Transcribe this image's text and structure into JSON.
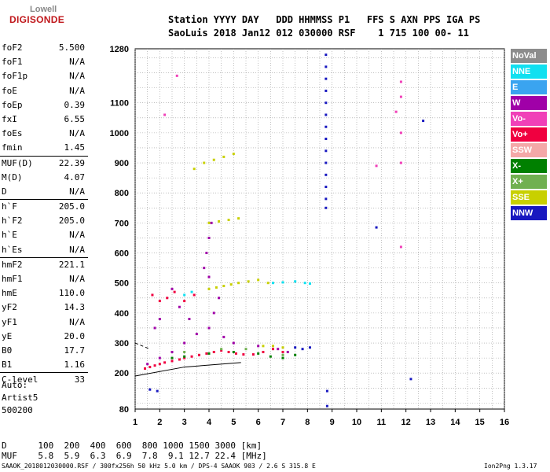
{
  "logo": {
    "line1": "Lowell",
    "line2": "DIGISONDE"
  },
  "header": {
    "line1": "Station YYYY DAY   DDD HHMMSS P1   FFS S AXN PPS IGA PS",
    "line2": "SaoLuis 2018 Jan12 012 030000 RSF    1 715 100 00- 11"
  },
  "params": [
    {
      "label": "foF2",
      "value": "5.500"
    },
    {
      "label": "foF1",
      "value": "N/A"
    },
    {
      "label": "foF1p",
      "value": "N/A"
    },
    {
      "label": "foE",
      "value": "N/A"
    },
    {
      "label": "foEp",
      "value": "0.39"
    },
    {
      "label": "fxI",
      "value": "6.55"
    },
    {
      "label": "foEs",
      "value": "N/A"
    },
    {
      "label": "fmin",
      "value": "1.45"
    },
    {
      "label": "MUF(D)",
      "value": "22.39",
      "sep": true
    },
    {
      "label": "M(D)",
      "value": "4.07"
    },
    {
      "label": "D",
      "value": "N/A"
    },
    {
      "label": "h`F",
      "value": "205.0",
      "sep": true
    },
    {
      "label": "h`F2",
      "value": "205.0"
    },
    {
      "label": "h`E",
      "value": "N/A"
    },
    {
      "label": "h`Es",
      "value": "N/A"
    },
    {
      "label": "hmF2",
      "value": "221.1",
      "sep": true
    },
    {
      "label": "hmF1",
      "value": "N/A"
    },
    {
      "label": "hmE",
      "value": "110.0"
    },
    {
      "label": "yF2",
      "value": "14.3"
    },
    {
      "label": "yF1",
      "value": "N/A"
    },
    {
      "label": "yE",
      "value": "20.0"
    },
    {
      "label": "B0",
      "value": "17.7"
    },
    {
      "label": "B1",
      "value": "1.16"
    },
    {
      "label": "C-level",
      "value": "33",
      "sep": true
    }
  ],
  "auto": {
    "l1": "Auto:",
    "l2": "Artist5",
    "l3": "500200"
  },
  "muf_table": {
    "d_line": "D      100  200  400  600  800 1000 1500 3000 [km]",
    "muf_line": "MUF    5.8  5.9  6.3  6.9  7.8  9.1 12.7 22.4 [MHz]"
  },
  "footer": "SAAOK_2018012030000.RSF / 300fx256h 50 kHz 5.0 km / DPS-4 SAAOK 903 / 2.6 S 315.8 E",
  "version": "Ion2Png 1.3.17",
  "legend": [
    {
      "label": "NoVal",
      "color": "#8c8c8c"
    },
    {
      "label": "NNE",
      "color": "#10e0f0"
    },
    {
      "label": "E",
      "color": "#3aa4f0"
    },
    {
      "label": "W",
      "color": "#a000a8"
    },
    {
      "label": "Vo-",
      "color": "#f040b8"
    },
    {
      "label": "Vo+",
      "color": "#f00040"
    },
    {
      "label": "SSW",
      "color": "#f4a8a8"
    },
    {
      "label": "X-",
      "color": "#008000"
    },
    {
      "label": "X+",
      "color": "#70b050"
    },
    {
      "label": "SSE",
      "color": "#c8d000"
    },
    {
      "label": "NNW",
      "color": "#1818c0"
    }
  ],
  "chart_data": {
    "type": "scatter",
    "title": "",
    "xlabel": "",
    "ylabel": "",
    "xlim": [
      1,
      16
    ],
    "ylim": [
      80,
      1280
    ],
    "x_ticks": [
      1,
      2,
      3,
      4,
      5,
      6,
      7,
      8,
      9,
      10,
      11,
      12,
      13,
      14,
      15,
      16
    ],
    "y_ticks": [
      80,
      200,
      300,
      400,
      500,
      600,
      700,
      800,
      900,
      1000,
      1100,
      1280
    ],
    "grid": true,
    "scale": "ionogram virtual height (km) vs frequency (MHz)",
    "series": [
      {
        "color": "#f00040",
        "points": [
          [
            1.4,
            215
          ],
          [
            1.6,
            220
          ],
          [
            1.8,
            225
          ],
          [
            2.0,
            230
          ],
          [
            2.2,
            235
          ],
          [
            2.5,
            240
          ],
          [
            2.8,
            245
          ],
          [
            3.0,
            250
          ],
          [
            3.3,
            255
          ],
          [
            3.6,
            260
          ],
          [
            3.9,
            265
          ],
          [
            4.2,
            270
          ],
          [
            4.5,
            275
          ],
          [
            4.8,
            270
          ],
          [
            5.1,
            265
          ],
          [
            5.4,
            262
          ],
          [
            5.8,
            262
          ],
          [
            6.2,
            270
          ],
          [
            6.6,
            280
          ],
          [
            7.0,
            270
          ],
          [
            1.7,
            460
          ],
          [
            2.0,
            440
          ],
          [
            2.3,
            450
          ],
          [
            2.6,
            470
          ],
          [
            3.0,
            440
          ],
          [
            3.4,
            460
          ]
        ]
      },
      {
        "color": "#a000a8",
        "points": [
          [
            1.5,
            230
          ],
          [
            2.0,
            250
          ],
          [
            2.5,
            270
          ],
          [
            3.0,
            300
          ],
          [
            3.5,
            330
          ],
          [
            4.0,
            350
          ],
          [
            4.2,
            400
          ],
          [
            4.4,
            450
          ],
          [
            4.0,
            520
          ],
          [
            3.9,
            600
          ],
          [
            4.0,
            650
          ],
          [
            4.1,
            700
          ],
          [
            3.8,
            550
          ],
          [
            2.5,
            480
          ],
          [
            2.8,
            420
          ],
          [
            3.2,
            380
          ],
          [
            4.6,
            320
          ],
          [
            5.0,
            300
          ],
          [
            6.0,
            290
          ],
          [
            6.8,
            280
          ],
          [
            7.2,
            270
          ],
          [
            2.0,
            380
          ],
          [
            1.8,
            350
          ]
        ]
      },
      {
        "color": "#c8d000",
        "points": [
          [
            4.0,
            480
          ],
          [
            4.3,
            485
          ],
          [
            4.6,
            490
          ],
          [
            4.9,
            495
          ],
          [
            5.2,
            500
          ],
          [
            5.6,
            505
          ],
          [
            6.0,
            510
          ],
          [
            6.4,
            500
          ],
          [
            4.0,
            700
          ],
          [
            4.4,
            705
          ],
          [
            4.8,
            710
          ],
          [
            5.2,
            715
          ],
          [
            3.4,
            880
          ],
          [
            3.8,
            900
          ],
          [
            4.2,
            910
          ],
          [
            4.6,
            920
          ],
          [
            5.0,
            930
          ],
          [
            6.2,
            290
          ],
          [
            6.6,
            290
          ],
          [
            7.0,
            285
          ]
        ]
      },
      {
        "color": "#008000",
        "points": [
          [
            2.5,
            250
          ],
          [
            3.0,
            255
          ],
          [
            4.0,
            265
          ],
          [
            5.0,
            270
          ],
          [
            6.0,
            265
          ],
          [
            6.5,
            255
          ],
          [
            7.0,
            250
          ],
          [
            7.5,
            260
          ]
        ]
      },
      {
        "color": "#10e0f0",
        "points": [
          [
            6.6,
            500
          ],
          [
            7.0,
            502
          ],
          [
            7.5,
            505
          ],
          [
            7.9,
            500
          ],
          [
            8.1,
            498
          ],
          [
            3.0,
            460
          ],
          [
            3.3,
            470
          ]
        ]
      },
      {
        "color": "#1818c0",
        "points": [
          [
            8.75,
            1260
          ],
          [
            8.75,
            1220
          ],
          [
            8.75,
            1180
          ],
          [
            8.75,
            1140
          ],
          [
            8.75,
            1100
          ],
          [
            8.75,
            1060
          ],
          [
            8.75,
            1020
          ],
          [
            8.75,
            980
          ],
          [
            8.75,
            940
          ],
          [
            8.75,
            900
          ],
          [
            8.75,
            860
          ],
          [
            8.75,
            820
          ],
          [
            8.75,
            780
          ],
          [
            8.75,
            750
          ],
          [
            7.5,
            285
          ],
          [
            7.8,
            280
          ],
          [
            8.1,
            285
          ],
          [
            12.7,
            1040
          ],
          [
            10.8,
            685
          ],
          [
            12.2,
            180
          ],
          [
            8.8,
            90
          ],
          [
            8.8,
            140
          ],
          [
            1.9,
            140
          ],
          [
            1.6,
            145
          ]
        ]
      },
      {
        "color": "#f040b8",
        "points": [
          [
            11.8,
            1170
          ],
          [
            11.8,
            1120
          ],
          [
            11.8,
            1000
          ],
          [
            11.8,
            900
          ],
          [
            11.8,
            620
          ],
          [
            11.6,
            1070
          ],
          [
            10.8,
            890
          ],
          [
            2.7,
            1190
          ],
          [
            2.2,
            1060
          ]
        ]
      },
      {
        "color": "#70b050",
        "points": [
          [
            3.0,
            270
          ],
          [
            4.5,
            280
          ],
          [
            5.5,
            280
          ],
          [
            7.0,
            260
          ]
        ]
      }
    ]
  }
}
